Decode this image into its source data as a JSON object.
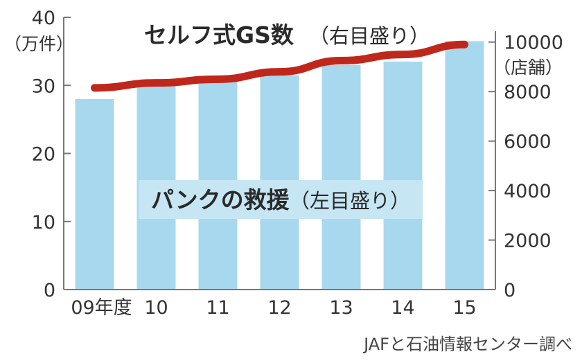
{
  "chart_data": {
    "type": "bar",
    "categories": [
      "09年度",
      "10",
      "11",
      "12",
      "13",
      "14",
      "15"
    ],
    "series": [
      {
        "name_main": "パンクの救援",
        "name_sub": "（左目盛り）",
        "type": "bar",
        "axis": "left",
        "values": [
          28,
          30,
          31,
          31.5,
          33,
          33.5,
          36.5
        ]
      },
      {
        "name_main": "セルフ式GS数",
        "name_sub": "（右目盛り）",
        "type": "line",
        "axis": "right",
        "values": [
          8150,
          8350,
          8500,
          8800,
          9250,
          9500,
          9900
        ]
      }
    ],
    "left_axis": {
      "unit": "（万件）",
      "min": 0,
      "max": 40,
      "ticks": [
        "0",
        "10",
        "20",
        "30",
        "40"
      ]
    },
    "right_axis": {
      "unit": "（店舗）",
      "min": 0,
      "max": 11000,
      "ticks": [
        "0",
        "2000",
        "4000",
        "6000",
        "8000",
        "10000"
      ]
    },
    "grid": false,
    "colors": {
      "bar": "#a8d8ee",
      "line": "#c0271b",
      "axis": "#777777",
      "text": "#333333"
    }
  },
  "source_note": "JAFと石油情報センター調べ"
}
